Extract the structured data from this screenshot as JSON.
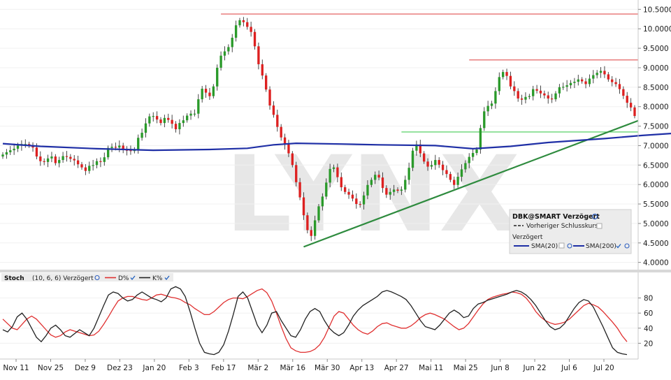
{
  "symbol": "DBK@SMART Verzögert",
  "legend": {
    "title": "DBK@SMART Verzögert",
    "prev_close": "Vorheriger Schlusskurs",
    "delayed": "Verzögert",
    "sma20": "SMA(20)",
    "sma200": "SMA(200)",
    "colors": {
      "sma20": "#1f2fa6",
      "sma200": "#1f2fa6"
    }
  },
  "watermark": "LYNX",
  "stoch": {
    "title": "Stoch",
    "params": "(10, 6, 6) Verzögert",
    "d_label": "D%",
    "k_label": "K%",
    "colors": {
      "d": "#e03030",
      "k": "#222222"
    },
    "y_ticks": [
      20,
      40,
      60,
      80
    ]
  },
  "chart_data": [
    {
      "type": "candlestick",
      "title": "",
      "y_ticks": [
        "4.0000",
        "4.5000",
        "5.0000",
        "5.5000",
        "6.0000",
        "6.5000",
        "7.0000",
        "7.5000",
        "8.0000",
        "8.5000",
        "9.0000",
        "9.5000",
        "10.0000",
        "10.5000"
      ],
      "ylim": [
        3.85,
        10.65
      ],
      "x_ticks": [
        "Nov 11",
        "Nov 25",
        "Dez 9",
        "Dez 23",
        "Jan 20",
        "Feb 3",
        "Feb 17",
        "Mär 2",
        "Mär 16",
        "Mär 30",
        "Apr 13",
        "Apr 27",
        "Mai 11",
        "Mai 25",
        "Jun 8",
        "Jun 22",
        "Jul 6",
        "Jul 20"
      ],
      "close": [
        6.77,
        6.83,
        6.88,
        6.92,
        7.0,
        7.04,
        7.04,
        7.0,
        6.95,
        6.72,
        6.6,
        6.58,
        6.67,
        6.72,
        6.55,
        6.63,
        6.73,
        6.71,
        6.66,
        6.62,
        6.52,
        6.44,
        6.35,
        6.48,
        6.5,
        6.6,
        6.58,
        6.7,
        6.94,
        6.97,
        6.95,
        7.0,
        6.89,
        6.88,
        6.86,
        6.9,
        7.2,
        7.33,
        7.57,
        7.75,
        7.76,
        7.67,
        7.58,
        7.71,
        7.66,
        7.56,
        7.42,
        7.58,
        7.65,
        7.77,
        7.82,
        7.82,
        8.19,
        8.46,
        8.36,
        8.27,
        8.52,
        9.0,
        9.31,
        9.42,
        9.53,
        9.77,
        10.09,
        10.22,
        10.17,
        10.05,
        9.92,
        9.55,
        9.09,
        8.8,
        8.44,
        8.03,
        7.79,
        7.48,
        7.21,
        7.03,
        6.8,
        6.5,
        6.06,
        5.67,
        5.21,
        4.83,
        4.68,
        5.08,
        5.44,
        5.69,
        6.05,
        6.4,
        6.44,
        6.19,
        5.93,
        5.81,
        5.74,
        5.64,
        5.5,
        5.49,
        5.72,
        5.99,
        6.12,
        6.25,
        6.18,
        5.91,
        5.74,
        5.81,
        5.87,
        5.84,
        5.87,
        6.12,
        6.43,
        6.87,
        7.03,
        6.8,
        6.59,
        6.46,
        6.5,
        6.63,
        6.51,
        6.37,
        6.27,
        6.12,
        5.99,
        6.2,
        6.39,
        6.55,
        6.71,
        6.81,
        6.9,
        7.45,
        7.88,
        8.02,
        8.08,
        8.4,
        8.76,
        8.89,
        8.79,
        8.52,
        8.4,
        8.21,
        8.18,
        8.25,
        8.27,
        8.45,
        8.41,
        8.34,
        8.29,
        8.21,
        8.19,
        8.34,
        8.5,
        8.51,
        8.55,
        8.61,
        8.64,
        8.7,
        8.65,
        8.58,
        8.72,
        8.81,
        8.87,
        8.92,
        8.83,
        8.7,
        8.63,
        8.58,
        8.45,
        8.28,
        8.1,
        7.98,
        7.76
      ],
      "sma200_points": [
        [
          0,
          7.05
        ],
        [
          10,
          6.98
        ],
        [
          25,
          6.92
        ],
        [
          40,
          6.88
        ],
        [
          55,
          6.9
        ],
        [
          65,
          6.93
        ],
        [
          72,
          7.02
        ],
        [
          78,
          7.06
        ],
        [
          90,
          7.04
        ],
        [
          100,
          7.02
        ],
        [
          115,
          7.0
        ],
        [
          125,
          6.92
        ],
        [
          135,
          6.98
        ],
        [
          145,
          7.08
        ],
        [
          160,
          7.18
        ],
        [
          170,
          7.26
        ],
        [
          179,
          7.32
        ]
      ],
      "resistance_levels": [
        10.38,
        9.2
      ],
      "support_level": 7.35,
      "trendline": [
        [
          4.42,
          4.4
        ],
        [
          9.4,
          7.64
        ]
      ]
    },
    {
      "type": "line",
      "title": "Stoch (10, 6, 6) Verzögert",
      "ylim": [
        0,
        100
      ],
      "series": [
        {
          "name": "D%",
          "values": [
            52,
            46,
            40,
            38,
            45,
            52,
            56,
            52,
            45,
            38,
            31,
            28,
            30,
            35,
            38,
            36,
            34,
            32,
            30,
            31,
            36,
            45,
            55,
            66,
            76,
            80,
            82,
            82,
            80,
            78,
            77,
            80,
            84,
            85,
            83,
            81,
            80,
            78,
            74,
            71,
            66,
            62,
            58,
            58,
            62,
            68,
            74,
            78,
            80,
            80,
            79,
            82,
            86,
            90,
            92,
            87,
            76,
            60,
            42,
            26,
            14,
            10,
            8,
            8,
            9,
            12,
            18,
            28,
            42,
            56,
            62,
            60,
            52,
            44,
            38,
            34,
            32,
            36,
            42,
            46,
            47,
            44,
            42,
            40,
            40,
            43,
            48,
            54,
            58,
            60,
            58,
            55,
            52,
            47,
            42,
            38,
            40,
            46,
            55,
            64,
            72,
            78,
            81,
            83,
            85,
            86,
            88,
            87,
            85,
            80,
            72,
            62,
            55,
            50,
            47,
            45,
            46,
            48,
            52,
            58,
            64,
            70,
            73,
            71,
            68,
            62,
            55,
            48,
            40,
            30,
            22
          ]
        },
        {
          "name": "K%",
          "values": [
            38,
            35,
            42,
            55,
            60,
            52,
            40,
            28,
            22,
            30,
            40,
            44,
            38,
            30,
            28,
            33,
            38,
            34,
            30,
            40,
            55,
            70,
            84,
            88,
            86,
            80,
            76,
            78,
            84,
            88,
            84,
            80,
            78,
            75,
            80,
            92,
            95,
            92,
            82,
            62,
            40,
            20,
            8,
            6,
            5,
            8,
            18,
            36,
            58,
            82,
            88,
            80,
            62,
            44,
            34,
            44,
            60,
            62,
            50,
            40,
            30,
            28,
            38,
            52,
            62,
            66,
            62,
            50,
            40,
            34,
            30,
            34,
            44,
            56,
            64,
            70,
            74,
            78,
            82,
            88,
            90,
            88,
            85,
            82,
            78,
            70,
            60,
            50,
            42,
            40,
            38,
            44,
            52,
            60,
            64,
            60,
            54,
            56,
            66,
            72,
            74,
            77,
            79,
            81,
            83,
            85,
            88,
            90,
            88,
            84,
            78,
            70,
            60,
            50,
            42,
            38,
            40,
            46,
            56,
            66,
            74,
            78,
            76,
            68,
            55,
            42,
            28,
            14,
            8,
            6,
            5
          ]
        }
      ]
    }
  ]
}
